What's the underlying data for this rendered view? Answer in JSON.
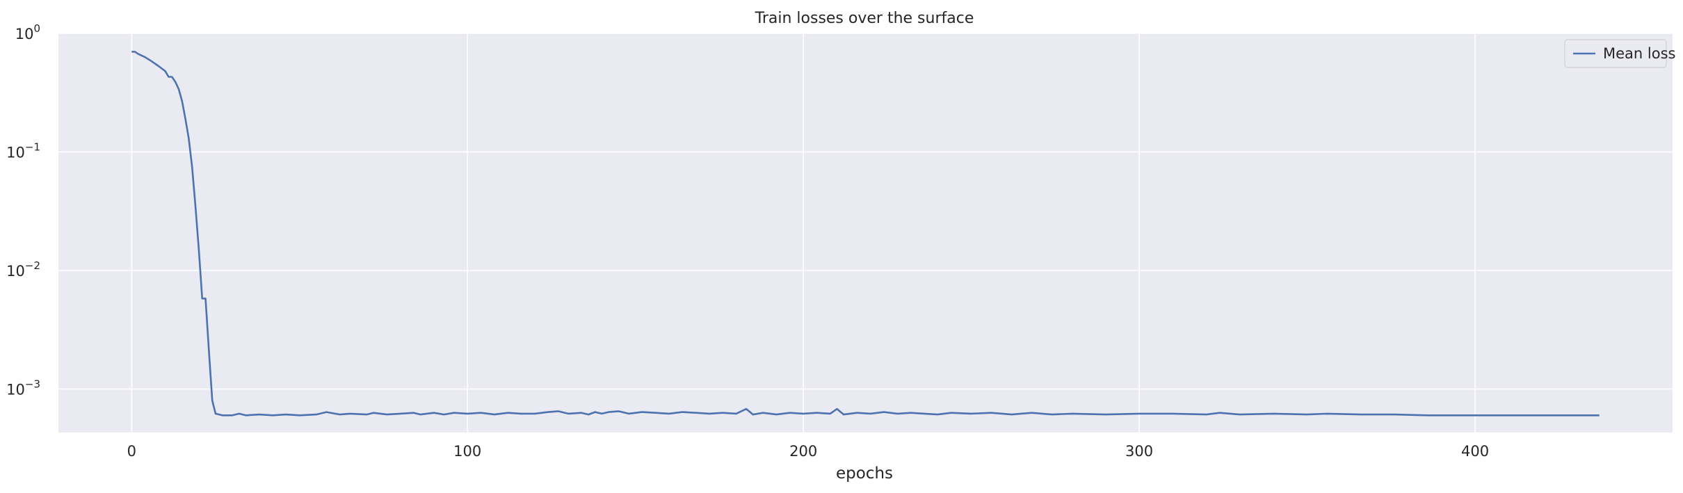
{
  "chart_data": {
    "type": "line",
    "title": "Train losses over the surface",
    "xlabel": "epochs",
    "ylabel": "",
    "xlim": [
      -21.8,
      458.8
    ],
    "ylim": [
      0.00043,
      1.0
    ],
    "yscale": "log",
    "xticks": [
      0,
      100,
      200,
      300,
      400
    ],
    "yticks": [
      {
        "value": 1,
        "base": "10",
        "exp": "0"
      },
      {
        "value": 0.1,
        "base": "10",
        "exp": "−1"
      },
      {
        "value": 0.01,
        "base": "10",
        "exp": "−2"
      },
      {
        "value": 0.001,
        "base": "10",
        "exp": "−3"
      }
    ],
    "grid": true,
    "legend_position": "top-right",
    "colors": {
      "background": "#eaeaf2",
      "grid": "#ffffff",
      "line": "#4c72b0",
      "text": "#262626"
    },
    "series": [
      {
        "name": "Mean loss",
        "points": [
          [
            0,
            0.7
          ],
          [
            1,
            0.7
          ],
          [
            2,
            0.67
          ],
          [
            4,
            0.63
          ],
          [
            6,
            0.58
          ],
          [
            8,
            0.53
          ],
          [
            10,
            0.48
          ],
          [
            11,
            0.43
          ],
          [
            12,
            0.43
          ],
          [
            13,
            0.39
          ],
          [
            14,
            0.34
          ],
          [
            15,
            0.27
          ],
          [
            16,
            0.19
          ],
          [
            17,
            0.13
          ],
          [
            18,
            0.075
          ],
          [
            19,
            0.035
          ],
          [
            20,
            0.015
          ],
          [
            21,
            0.0058
          ],
          [
            22,
            0.0058
          ],
          [
            23,
            0.0021
          ],
          [
            24,
            0.0008
          ],
          [
            25,
            0.00062
          ],
          [
            27,
            0.0006
          ],
          [
            30,
            0.0006
          ],
          [
            32,
            0.00062
          ],
          [
            34,
            0.0006
          ],
          [
            38,
            0.00061
          ],
          [
            42,
            0.0006
          ],
          [
            46,
            0.00061
          ],
          [
            50,
            0.0006
          ],
          [
            55,
            0.00061
          ],
          [
            58,
            0.00064
          ],
          [
            62,
            0.00061
          ],
          [
            65,
            0.00062
          ],
          [
            70,
            0.00061
          ],
          [
            72,
            0.00063
          ],
          [
            76,
            0.00061
          ],
          [
            80,
            0.00062
          ],
          [
            84,
            0.00063
          ],
          [
            86,
            0.00061
          ],
          [
            90,
            0.00063
          ],
          [
            93,
            0.00061
          ],
          [
            96,
            0.00063
          ],
          [
            100,
            0.00062
          ],
          [
            104,
            0.00063
          ],
          [
            108,
            0.00061
          ],
          [
            112,
            0.00063
          ],
          [
            116,
            0.00062
          ],
          [
            120,
            0.00062
          ],
          [
            124,
            0.00064
          ],
          [
            127,
            0.00065
          ],
          [
            130,
            0.00062
          ],
          [
            134,
            0.00063
          ],
          [
            136,
            0.00061
          ],
          [
            138,
            0.00064
          ],
          [
            140,
            0.00062
          ],
          [
            142,
            0.00064
          ],
          [
            145,
            0.00065
          ],
          [
            148,
            0.00062
          ],
          [
            152,
            0.00064
          ],
          [
            156,
            0.00063
          ],
          [
            160,
            0.00062
          ],
          [
            164,
            0.00064
          ],
          [
            168,
            0.00063
          ],
          [
            172,
            0.00062
          ],
          [
            176,
            0.00063
          ],
          [
            180,
            0.00062
          ],
          [
            183,
            0.00068
          ],
          [
            185,
            0.00061
          ],
          [
            188,
            0.00063
          ],
          [
            192,
            0.00061
          ],
          [
            196,
            0.00063
          ],
          [
            200,
            0.00062
          ],
          [
            204,
            0.00063
          ],
          [
            208,
            0.00062
          ],
          [
            210,
            0.00068
          ],
          [
            212,
            0.00061
          ],
          [
            216,
            0.00063
          ],
          [
            220,
            0.00062
          ],
          [
            224,
            0.00064
          ],
          [
            228,
            0.00062
          ],
          [
            232,
            0.00063
          ],
          [
            236,
            0.00062
          ],
          [
            240,
            0.00061
          ],
          [
            244,
            0.00063
          ],
          [
            250,
            0.00062
          ],
          [
            256,
            0.00063
          ],
          [
            262,
            0.00061
          ],
          [
            268,
            0.00063
          ],
          [
            274,
            0.00061
          ],
          [
            280,
            0.00062
          ],
          [
            290,
            0.00061
          ],
          [
            300,
            0.00062
          ],
          [
            310,
            0.00062
          ],
          [
            320,
            0.00061
          ],
          [
            324,
            0.00063
          ],
          [
            330,
            0.00061
          ],
          [
            340,
            0.00062
          ],
          [
            350,
            0.00061
          ],
          [
            356,
            0.00062
          ],
          [
            366,
            0.00061
          ],
          [
            376,
            0.00061
          ],
          [
            386,
            0.0006
          ],
          [
            396,
            0.0006
          ],
          [
            406,
            0.0006
          ],
          [
            416,
            0.0006
          ],
          [
            426,
            0.0006
          ],
          [
            437,
            0.0006
          ]
        ]
      }
    ]
  }
}
